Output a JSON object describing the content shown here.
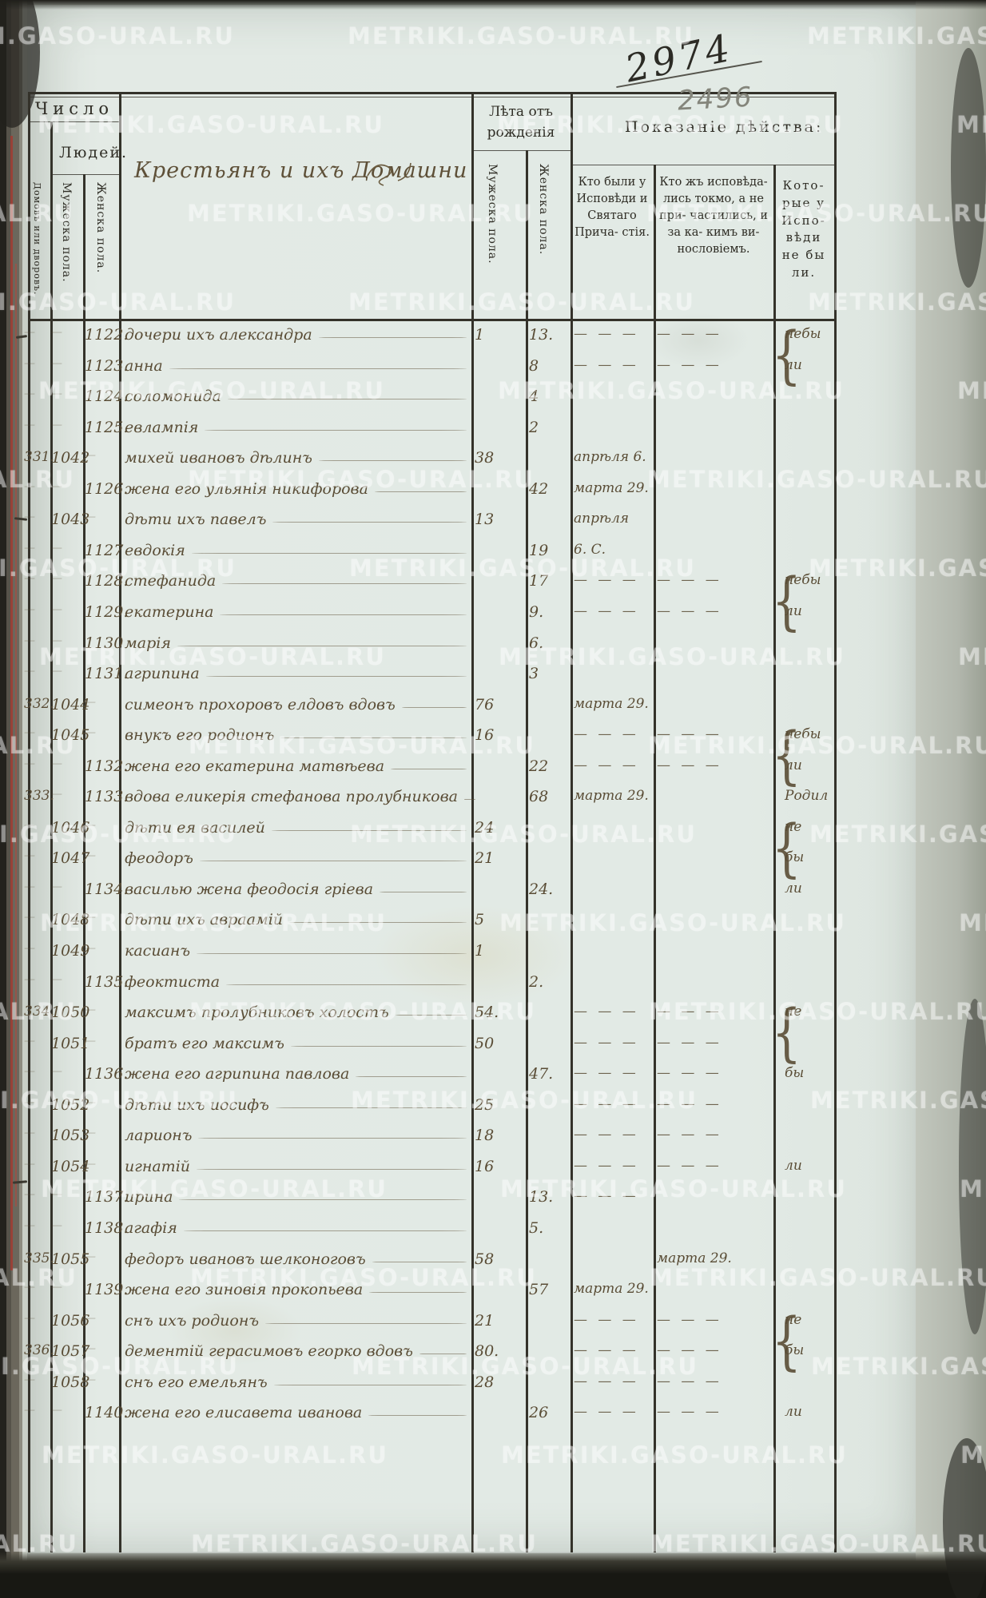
{
  "watermark": {
    "text": "METRIKI.GASO-URAL.RU"
  },
  "annotations": {
    "crossed_folio_number": "2974",
    "pencil_folio_number": "2496"
  },
  "header": {
    "count_group": {
      "title": "Число",
      "subtitle": "Людей.",
      "col_house": "Домовъ или дворовъ.",
      "col_male": "Мужеска пола.",
      "col_female": "Женска пола."
    },
    "names_title": "Крестьянъ и ихъ Домашни",
    "age_group": {
      "title": "Лѣта отъ рожденія",
      "col_male": "Мужеска пола.",
      "col_female": "Женска пола."
    },
    "action_group": {
      "title": "Показаніе дѣйства:",
      "col_confessed_and_communed": "Кто были у Исповѣди и Святаго Прича- стія.",
      "col_confessed_only": "Кто жъ исповѣда- лись токмо, а не при- частились, и за ка- кимъ ви- нословіемъ.",
      "col_absent": "Кото- рые у Испо- вѣди не бы ли."
    }
  },
  "rows": [
    {
      "house": "",
      "male_no": "",
      "female_no": "1122.",
      "name": "дочери ихъ александра",
      "male_age": "1",
      "female_age": "13.",
      "note1": "— — —",
      "note2": "— — —",
      "margin": "небы",
      "brace": true
    },
    {
      "house": "",
      "male_no": "",
      "female_no": "1123.",
      "name": "анна",
      "male_age": "",
      "female_age": "8",
      "note1": "— — —",
      "note2": "— — —",
      "margin": "ли",
      "brace": false
    },
    {
      "house": "",
      "male_no": "",
      "female_no": "1124.",
      "name": "соломонида",
      "male_age": "",
      "female_age": "4",
      "note1": "",
      "note2": "",
      "margin": "",
      "brace": false
    },
    {
      "house": "",
      "male_no": "",
      "female_no": "1125.",
      "name": "евлампія",
      "male_age": "",
      "female_age": "2",
      "note1": "",
      "note2": "",
      "margin": "",
      "brace": false
    },
    {
      "house": "331.",
      "male_no": "1042",
      "female_no": "",
      "name": "михей ивановъ дѣлинъ",
      "male_age": "38",
      "female_age": "",
      "note1": "апрѣля 6.",
      "note2": "",
      "margin": "",
      "brace": false
    },
    {
      "house": "",
      "male_no": "",
      "female_no": "1126.",
      "name": "жена его ульянія никифорова",
      "male_age": "",
      "female_age": "42",
      "note1": "марта 29.",
      "note2": "",
      "margin": "",
      "brace": false
    },
    {
      "house": "",
      "male_no": "1043",
      "female_no": "",
      "name": "дѣти ихъ павелъ",
      "male_age": "13",
      "female_age": "",
      "note1": "апрѣля",
      "note2": "",
      "margin": "",
      "brace": false
    },
    {
      "house": "",
      "male_no": "",
      "female_no": "1127",
      "name": "евдокія",
      "male_age": "",
      "female_age": "19",
      "note1": "6. С.",
      "note2": "",
      "margin": "",
      "brace": false
    },
    {
      "house": "",
      "male_no": "",
      "female_no": "1128.",
      "name": "стефанида",
      "male_age": "",
      "female_age": "17",
      "note1": "— — —",
      "note2": "— — —",
      "margin": "небы",
      "brace": true
    },
    {
      "house": "",
      "male_no": "",
      "female_no": "1129.",
      "name": "екатерина",
      "male_age": "",
      "female_age": "9.",
      "note1": "— — —",
      "note2": "— — —",
      "margin": "ли",
      "brace": false
    },
    {
      "house": "",
      "male_no": "",
      "female_no": "1130",
      "name": "марія",
      "male_age": "",
      "female_age": "6.",
      "note1": "",
      "note2": "",
      "margin": "",
      "brace": false
    },
    {
      "house": "",
      "male_no": "",
      "female_no": "1131.",
      "name": "агрипина",
      "male_age": "",
      "female_age": "3",
      "note1": "",
      "note2": "",
      "margin": "",
      "brace": false
    },
    {
      "house": "332.",
      "male_no": "1044",
      "female_no": "",
      "name": "симеонъ прохоровъ елдовъ вдовъ",
      "male_age": "76",
      "female_age": "",
      "note1": "марта 29.",
      "note2": "",
      "margin": "",
      "brace": false
    },
    {
      "house": "",
      "male_no": "1045",
      "female_no": "",
      "name": "внукъ его родионъ",
      "male_age": "16",
      "female_age": "",
      "note1": "— — —",
      "note2": "— — —",
      "margin": "небы",
      "brace": true
    },
    {
      "house": "",
      "male_no": "",
      "female_no": "1132.",
      "name": "жена его екатерина матвѣева",
      "male_age": "",
      "female_age": "22",
      "note1": "— — —",
      "note2": "— — —",
      "margin": "ли",
      "brace": false
    },
    {
      "house": "333.",
      "male_no": "",
      "female_no": "1133.",
      "name": "вдова еликерія стефанова пролубникова",
      "male_age": "",
      "female_age": "68",
      "note1": "марта 29.",
      "note2": "",
      "margin": "Родил",
      "brace": false
    },
    {
      "house": "",
      "male_no": "1046",
      "female_no": "",
      "name": "дѣти ея василей",
      "male_age": "24",
      "female_age": "",
      "note1": "",
      "note2": "",
      "margin": "не",
      "brace": true
    },
    {
      "house": "",
      "male_no": "1047",
      "female_no": "",
      "name": "феодоръ",
      "male_age": "21",
      "female_age": "",
      "note1": "",
      "note2": "",
      "margin": "бы",
      "brace": false
    },
    {
      "house": "",
      "male_no": "",
      "female_no": "1134.",
      "name": "василью жена феодосія гріева",
      "male_age": "",
      "female_age": "24.",
      "note1": "",
      "note2": "",
      "margin": "ли",
      "brace": false
    },
    {
      "house": "",
      "male_no": "1048",
      "female_no": "",
      "name": "дѣти ихъ авраамій",
      "male_age": "5",
      "female_age": "",
      "note1": "",
      "note2": "",
      "margin": "",
      "brace": false
    },
    {
      "house": "",
      "male_no": "1049",
      "female_no": "",
      "name": "касианъ",
      "male_age": "1",
      "female_age": "",
      "note1": "",
      "note2": "",
      "margin": "",
      "brace": false
    },
    {
      "house": "",
      "male_no": "",
      "female_no": "1135.",
      "name": "феоктиста",
      "male_age": "",
      "female_age": "2.",
      "note1": "",
      "note2": "",
      "margin": "",
      "brace": false
    },
    {
      "house": "334.",
      "male_no": "1050",
      "female_no": "",
      "name": "максимъ пролубниковъ холостъ",
      "male_age": "54.",
      "female_age": "",
      "note1": "— — —",
      "note2": "— — —",
      "margin": "не",
      "brace": true
    },
    {
      "house": "",
      "male_no": "1051",
      "female_no": "",
      "name": "братъ его максимъ",
      "male_age": "50",
      "female_age": "",
      "note1": "— — —",
      "note2": "— — —",
      "margin": "",
      "brace": false
    },
    {
      "house": "",
      "male_no": "",
      "female_no": "1136.",
      "name": "жена его агрипина павлова",
      "male_age": "",
      "female_age": "47.",
      "note1": "— — —",
      "note2": "— — —",
      "margin": "бы",
      "brace": false
    },
    {
      "house": "",
      "male_no": "1052",
      "female_no": "",
      "name": "дѣти ихъ иосифъ",
      "male_age": "25",
      "female_age": "",
      "note1": "— — —",
      "note2": "— — —",
      "margin": "",
      "brace": false
    },
    {
      "house": "",
      "male_no": "1053",
      "female_no": "",
      "name": "ларионъ",
      "male_age": "18",
      "female_age": "",
      "note1": "— — —",
      "note2": "— — —",
      "margin": "",
      "brace": false
    },
    {
      "house": "",
      "male_no": "1054",
      "female_no": "",
      "name": "игнатій",
      "male_age": "16",
      "female_age": "",
      "note1": "— — —",
      "note2": "— — —",
      "margin": "ли",
      "brace": false
    },
    {
      "house": "",
      "male_no": "",
      "female_no": "1137.",
      "name": "ирина",
      "male_age": "",
      "female_age": "13.",
      "note1": "— — —",
      "note2": "",
      "margin": "",
      "brace": false
    },
    {
      "house": "",
      "male_no": "",
      "female_no": "1138.",
      "name": "агафія",
      "male_age": "",
      "female_age": "5.",
      "note1": "",
      "note2": "",
      "margin": "",
      "brace": false
    },
    {
      "house": "335.",
      "male_no": "1055",
      "female_no": "",
      "name": "федоръ ивановъ шелконоговъ",
      "male_age": "58",
      "female_age": "",
      "note1": "",
      "note2": "марта 29.",
      "margin": "",
      "brace": false
    },
    {
      "house": "",
      "male_no": "",
      "female_no": "1139.",
      "name": "жена его зиновія прокопьева",
      "male_age": "",
      "female_age": "57",
      "note1": "марта 29.",
      "note2": "",
      "margin": "",
      "brace": false
    },
    {
      "house": "",
      "male_no": "1056",
      "female_no": "",
      "name": "снъ ихъ родионъ",
      "male_age": "21",
      "female_age": "",
      "note1": "— — —",
      "note2": "— — —",
      "margin": "не",
      "brace": true
    },
    {
      "house": "336.",
      "male_no": "1057",
      "female_no": "",
      "name": "дементій герасимовъ егорко вдовъ",
      "male_age": "80.",
      "female_age": "",
      "note1": "— — —",
      "note2": "— — —",
      "margin": "бы",
      "brace": false
    },
    {
      "house": "",
      "male_no": "1058",
      "female_no": "",
      "name": "снъ его емельянъ",
      "male_age": "28",
      "female_age": "",
      "note1": "— — —",
      "note2": "— — —",
      "margin": "",
      "brace": false
    },
    {
      "house": "",
      "male_no": "",
      "female_no": "1140.",
      "name": "жена его елисавета иванова",
      "male_age": "",
      "female_age": "26",
      "note1": "— — —",
      "note2": "— — —",
      "margin": "ли",
      "brace": false
    }
  ]
}
